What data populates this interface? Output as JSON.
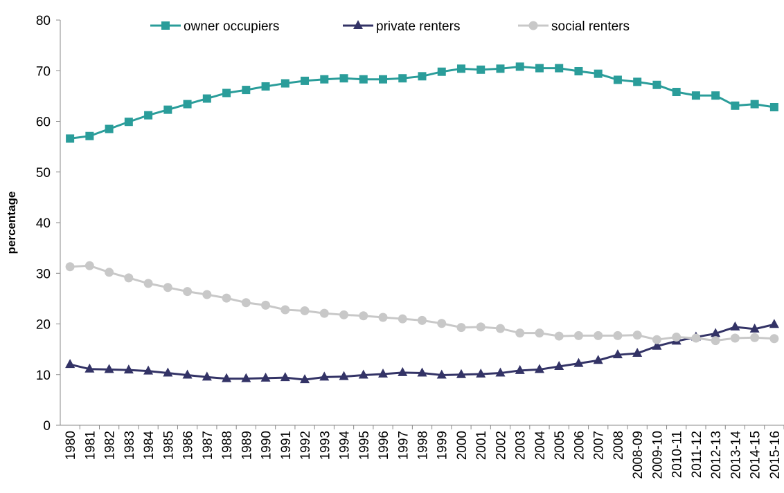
{
  "chart_data": {
    "type": "line",
    "y_label": "percentage",
    "categories": [
      "1980",
      "1981",
      "1982",
      "1983",
      "1984",
      "1985",
      "1986",
      "1987",
      "1988",
      "1989",
      "1990",
      "1991",
      "1992",
      "1993",
      "1994",
      "1995",
      "1996",
      "1997",
      "1998",
      "1999",
      "2000",
      "2001",
      "2002",
      "2003",
      "2004",
      "2005",
      "2006",
      "2007",
      "2008",
      "2008-09",
      "2009-10",
      "2010-11",
      "2011-12",
      "2012-13",
      "2013-14",
      "2014-15",
      "2015-16"
    ],
    "series": [
      {
        "name": "owner occupiers",
        "color": "#2a9d9a",
        "marker": "square",
        "values": [
          56.6,
          57.1,
          58.5,
          59.9,
          61.2,
          62.3,
          63.4,
          64.5,
          65.6,
          66.2,
          66.9,
          67.5,
          68.0,
          68.3,
          68.5,
          68.3,
          68.3,
          68.5,
          68.9,
          69.8,
          70.4,
          70.2,
          70.4,
          70.8,
          70.5,
          70.5,
          69.9,
          69.4,
          68.2,
          67.8,
          67.2,
          65.8,
          65.1,
          65.1,
          63.1,
          63.4,
          62.8
        ]
      },
      {
        "name": "private renters",
        "color": "#333366",
        "marker": "triangle",
        "values": [
          12.0,
          11.1,
          11.0,
          10.9,
          10.7,
          10.3,
          9.9,
          9.5,
          9.2,
          9.2,
          9.3,
          9.4,
          9.0,
          9.5,
          9.6,
          9.9,
          10.1,
          10.4,
          10.3,
          9.9,
          10.0,
          10.1,
          10.3,
          10.8,
          11.0,
          11.6,
          12.2,
          12.8,
          13.9,
          14.2,
          15.6,
          16.6,
          17.4,
          18.1,
          19.4,
          19.0,
          19.9
        ]
      },
      {
        "name": "social renters",
        "color": "#c8c8c8",
        "marker": "circle",
        "values": [
          31.3,
          31.5,
          30.2,
          29.1,
          28.0,
          27.2,
          26.4,
          25.8,
          25.1,
          24.2,
          23.7,
          22.8,
          22.6,
          22.1,
          21.8,
          21.6,
          21.3,
          21.0,
          20.7,
          20.1,
          19.3,
          19.4,
          19.1,
          18.2,
          18.2,
          17.6,
          17.7,
          17.7,
          17.7,
          17.8,
          16.9,
          17.4,
          17.2,
          16.7,
          17.2,
          17.3,
          17.1
        ]
      }
    ],
    "ylim": [
      0,
      80
    ],
    "yticks": [
      0,
      10,
      20,
      30,
      40,
      50,
      60,
      70,
      80
    ],
    "grid": false,
    "legend": "top"
  }
}
